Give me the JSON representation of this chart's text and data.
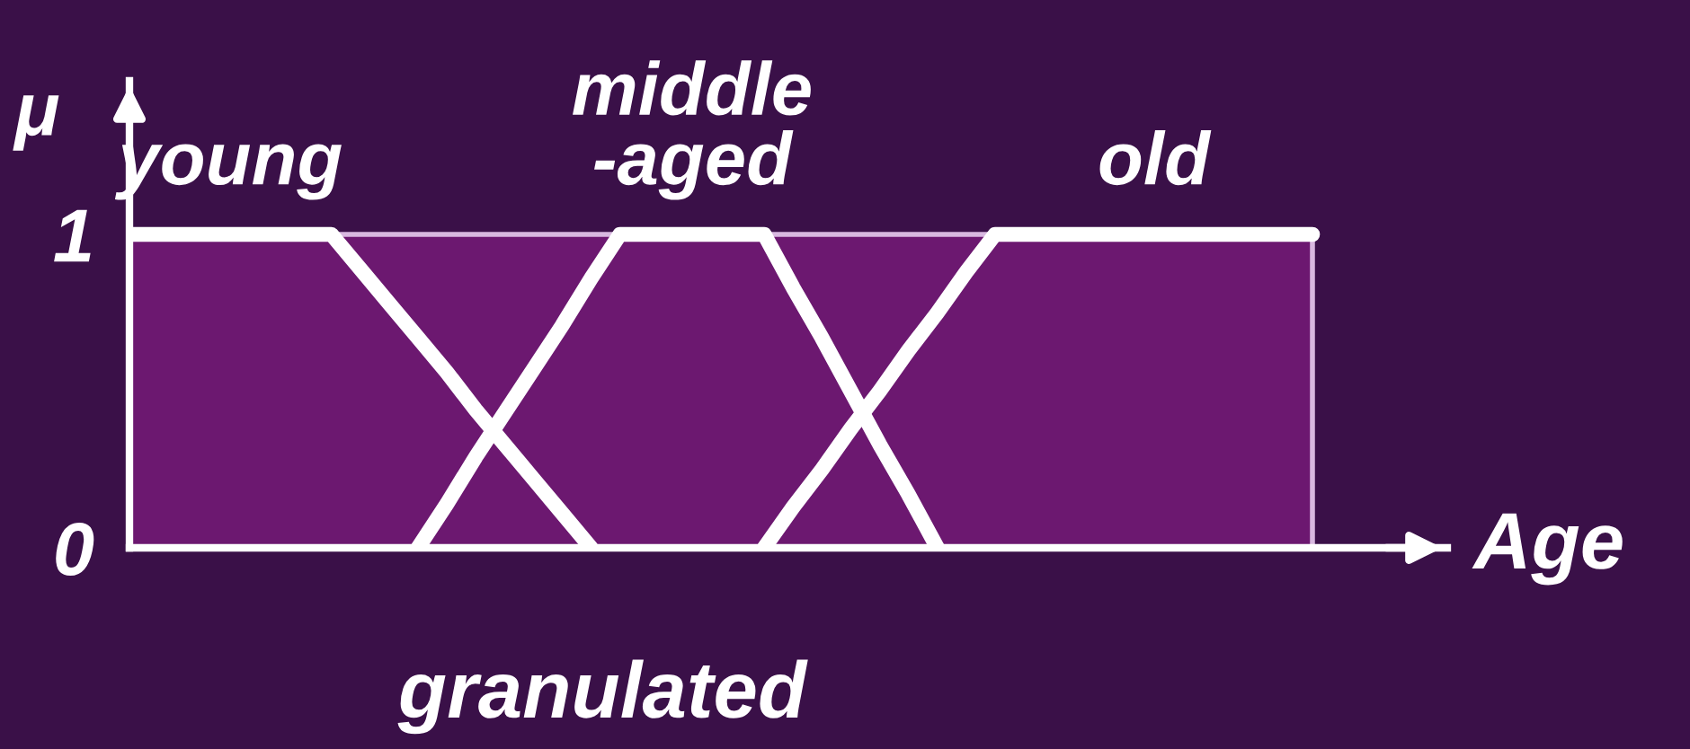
{
  "chart_data": {
    "type": "line",
    "xlabel": "Age",
    "ylabel": "μ",
    "categories": [
      null,
      null,
      null,
      null,
      null,
      null,
      null,
      null,
      null,
      null,
      null,
      null,
      null,
      null,
      null,
      null,
      null,
      null,
      null,
      null,
      null,
      null,
      null,
      null,
      null,
      null,
      null,
      null,
      null,
      null,
      null,
      null,
      null,
      null,
      null,
      null,
      null,
      null,
      null,
      null,
      null,
      null
    ],
    "ylim": [
      0,
      1.49
    ],
    "yticks": [
      0,
      1
    ],
    "tick_labels": "y",
    "grid": false,
    "marker": "none",
    "line_style": "solid",
    "series": [
      {
        "type": "area",
        "color": "#6c1870",
        "values": [
          1,
          1,
          1,
          1,
          1,
          1,
          1,
          1,
          1,
          1,
          1,
          1,
          1,
          1,
          1,
          1,
          1,
          1,
          1,
          1,
          1,
          1,
          1,
          1,
          1,
          1,
          1,
          1,
          1,
          1,
          1,
          1,
          1,
          1,
          1,
          1,
          1,
          1,
          1,
          1,
          1,
          1
        ]
      },
      {
        "name": "young",
        "color": "#ffffff",
        "values": [
          1,
          1,
          1,
          1,
          1,
          1,
          1,
          1,
          0.89,
          0.78,
          0.67,
          0.56,
          0.44,
          0.33,
          0.22,
          0.11,
          0,
          null,
          null,
          null,
          null,
          null,
          null,
          null,
          null,
          null,
          null,
          null,
          null,
          null,
          null,
          null,
          null,
          null,
          null,
          null,
          null,
          null,
          null,
          null,
          null,
          null
        ]
      },
      {
        "name": "middle\n-aged",
        "color": "#ffffff",
        "values": [
          null,
          null,
          null,
          null,
          null,
          null,
          null,
          null,
          null,
          null,
          0,
          0.14,
          0.29,
          0.43,
          0.57,
          0.71,
          0.86,
          1,
          1,
          1,
          1,
          1,
          1,
          0.83,
          0.67,
          0.5,
          0.33,
          0.17,
          0,
          null,
          null,
          null,
          null,
          null,
          null,
          null,
          null,
          null,
          null,
          null,
          null,
          null
        ]
      },
      {
        "name": "old",
        "color": "#ffffff",
        "values": [
          null,
          null,
          null,
          null,
          null,
          null,
          null,
          null,
          null,
          null,
          null,
          null,
          null,
          null,
          null,
          null,
          null,
          null,
          null,
          null,
          null,
          null,
          0,
          0.13,
          0.25,
          0.38,
          0.5,
          0.63,
          0.75,
          0.88,
          1,
          1,
          1,
          1,
          1,
          1,
          1,
          1,
          1,
          1,
          1,
          1
        ]
      }
    ],
    "annotations": [
      "granulated"
    ]
  }
}
